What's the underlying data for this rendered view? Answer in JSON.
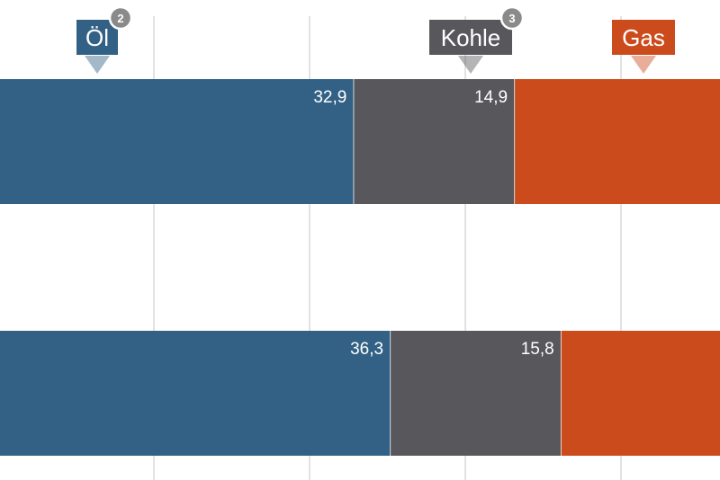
{
  "chart_data": {
    "type": "bar",
    "stacked": true,
    "orientation": "horizontal",
    "grid": true,
    "legend_placement": "top",
    "colors": {
      "Öl": "#336185",
      "Kohle": "#58575c",
      "Gas": "#cc4b1c"
    },
    "series": [
      {
        "name": "Öl",
        "badge": "2",
        "values": [
          32.9,
          36.3
        ],
        "labels": [
          "32,9",
          "36,3"
        ]
      },
      {
        "name": "Kohle",
        "badge": "3",
        "values": [
          14.9,
          15.8
        ],
        "labels": [
          "14,9",
          "15,8"
        ]
      },
      {
        "name": "Gas",
        "values": [
          null,
          null
        ]
      }
    ]
  }
}
